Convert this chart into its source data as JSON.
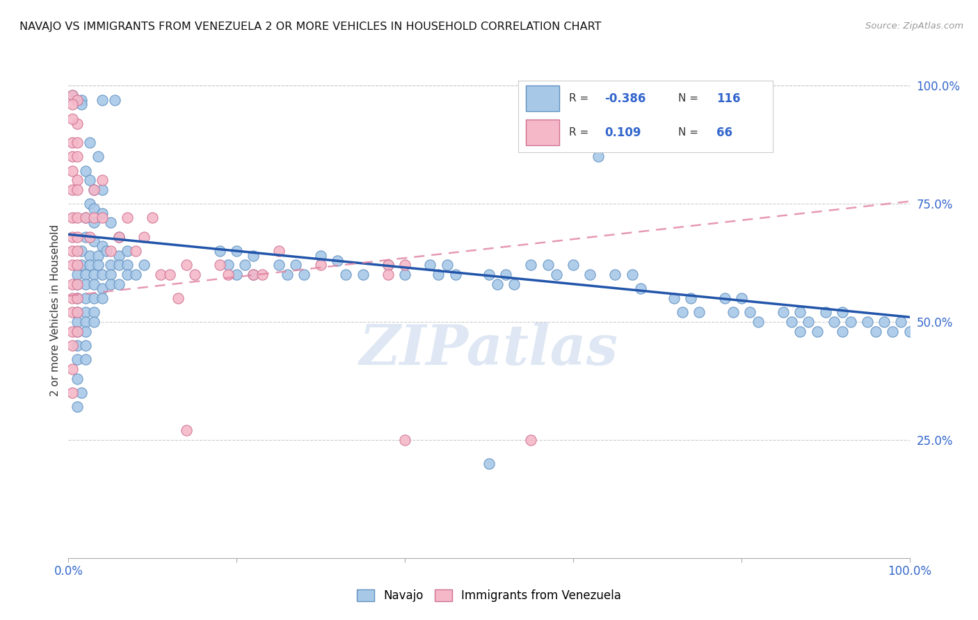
{
  "title": "NAVAJO VS IMMIGRANTS FROM VENEZUELA 2 OR MORE VEHICLES IN HOUSEHOLD CORRELATION CHART",
  "source": "Source: ZipAtlas.com",
  "ylabel": "2 or more Vehicles in Household",
  "xlim": [
    0,
    1
  ],
  "ylim": [
    0,
    1.05
  ],
  "xtick_positions": [
    0.0,
    0.2,
    0.4,
    0.6,
    0.8,
    1.0
  ],
  "xtick_labels": [
    "0.0%",
    "",
    "",
    "",
    "",
    "100.0%"
  ],
  "ytick_positions": [
    0.25,
    0.5,
    0.75,
    1.0
  ],
  "ytick_labels": [
    "25.0%",
    "50.0%",
    "75.0%",
    "100.0%"
  ],
  "navajo_color": "#a8c8e8",
  "navajo_edge_color": "#6090c0",
  "navajo_line_color": "#2255aa",
  "venezuela_color": "#f4b8c8",
  "venezuela_edge_color": "#d07090",
  "venezuela_line_color": "#e080a0",
  "background_color": "#ffffff",
  "grid_color": "#cccccc",
  "watermark_text": "ZIPatlas",
  "navajo_line_intercept": 0.685,
  "navajo_line_slope": -0.175,
  "venezuela_line_intercept": 0.555,
  "venezuela_line_slope": 0.2,
  "navajo_points": [
    [
      0.005,
      0.98
    ],
    [
      0.015,
      0.97
    ],
    [
      0.015,
      0.96
    ],
    [
      0.04,
      0.97
    ],
    [
      0.055,
      0.97
    ],
    [
      0.025,
      0.88
    ],
    [
      0.035,
      0.85
    ],
    [
      0.02,
      0.82
    ],
    [
      0.025,
      0.8
    ],
    [
      0.03,
      0.78
    ],
    [
      0.04,
      0.78
    ],
    [
      0.025,
      0.75
    ],
    [
      0.03,
      0.74
    ],
    [
      0.04,
      0.73
    ],
    [
      0.02,
      0.72
    ],
    [
      0.03,
      0.71
    ],
    [
      0.05,
      0.71
    ],
    [
      0.02,
      0.68
    ],
    [
      0.03,
      0.67
    ],
    [
      0.04,
      0.66
    ],
    [
      0.06,
      0.68
    ],
    [
      0.015,
      0.65
    ],
    [
      0.025,
      0.64
    ],
    [
      0.035,
      0.64
    ],
    [
      0.045,
      0.65
    ],
    [
      0.06,
      0.64
    ],
    [
      0.07,
      0.65
    ],
    [
      0.015,
      0.62
    ],
    [
      0.025,
      0.62
    ],
    [
      0.035,
      0.62
    ],
    [
      0.05,
      0.62
    ],
    [
      0.06,
      0.62
    ],
    [
      0.07,
      0.62
    ],
    [
      0.09,
      0.62
    ],
    [
      0.01,
      0.6
    ],
    [
      0.02,
      0.6
    ],
    [
      0.03,
      0.6
    ],
    [
      0.04,
      0.6
    ],
    [
      0.05,
      0.6
    ],
    [
      0.07,
      0.6
    ],
    [
      0.08,
      0.6
    ],
    [
      0.01,
      0.58
    ],
    [
      0.02,
      0.58
    ],
    [
      0.03,
      0.58
    ],
    [
      0.04,
      0.57
    ],
    [
      0.05,
      0.58
    ],
    [
      0.06,
      0.58
    ],
    [
      0.01,
      0.55
    ],
    [
      0.02,
      0.55
    ],
    [
      0.03,
      0.55
    ],
    [
      0.04,
      0.55
    ],
    [
      0.01,
      0.52
    ],
    [
      0.02,
      0.52
    ],
    [
      0.03,
      0.52
    ],
    [
      0.01,
      0.5
    ],
    [
      0.02,
      0.5
    ],
    [
      0.03,
      0.5
    ],
    [
      0.01,
      0.48
    ],
    [
      0.02,
      0.48
    ],
    [
      0.01,
      0.45
    ],
    [
      0.02,
      0.45
    ],
    [
      0.01,
      0.42
    ],
    [
      0.02,
      0.42
    ],
    [
      0.01,
      0.38
    ],
    [
      0.015,
      0.35
    ],
    [
      0.01,
      0.32
    ],
    [
      0.18,
      0.65
    ],
    [
      0.2,
      0.65
    ],
    [
      0.22,
      0.64
    ],
    [
      0.19,
      0.62
    ],
    [
      0.21,
      0.62
    ],
    [
      0.2,
      0.6
    ],
    [
      0.22,
      0.6
    ],
    [
      0.25,
      0.62
    ],
    [
      0.27,
      0.62
    ],
    [
      0.26,
      0.6
    ],
    [
      0.28,
      0.6
    ],
    [
      0.3,
      0.64
    ],
    [
      0.32,
      0.63
    ],
    [
      0.33,
      0.6
    ],
    [
      0.35,
      0.6
    ],
    [
      0.38,
      0.62
    ],
    [
      0.4,
      0.6
    ],
    [
      0.43,
      0.62
    ],
    [
      0.45,
      0.62
    ],
    [
      0.44,
      0.6
    ],
    [
      0.46,
      0.6
    ],
    [
      0.5,
      0.6
    ],
    [
      0.52,
      0.6
    ],
    [
      0.51,
      0.58
    ],
    [
      0.53,
      0.58
    ],
    [
      0.55,
      0.62
    ],
    [
      0.57,
      0.62
    ],
    [
      0.58,
      0.6
    ],
    [
      0.6,
      0.62
    ],
    [
      0.62,
      0.6
    ],
    [
      0.65,
      0.6
    ],
    [
      0.67,
      0.6
    ],
    [
      0.68,
      0.57
    ],
    [
      0.72,
      0.55
    ],
    [
      0.74,
      0.55
    ],
    [
      0.73,
      0.52
    ],
    [
      0.75,
      0.52
    ],
    [
      0.78,
      0.55
    ],
    [
      0.8,
      0.55
    ],
    [
      0.79,
      0.52
    ],
    [
      0.81,
      0.52
    ],
    [
      0.82,
      0.5
    ],
    [
      0.85,
      0.52
    ],
    [
      0.87,
      0.52
    ],
    [
      0.86,
      0.5
    ],
    [
      0.88,
      0.5
    ],
    [
      0.87,
      0.48
    ],
    [
      0.89,
      0.48
    ],
    [
      0.9,
      0.52
    ],
    [
      0.92,
      0.52
    ],
    [
      0.91,
      0.5
    ],
    [
      0.93,
      0.5
    ],
    [
      0.92,
      0.48
    ],
    [
      0.95,
      0.5
    ],
    [
      0.97,
      0.5
    ],
    [
      0.99,
      0.5
    ],
    [
      0.96,
      0.48
    ],
    [
      0.98,
      0.48
    ],
    [
      1.0,
      0.48
    ],
    [
      0.63,
      0.85
    ],
    [
      0.5,
      0.2
    ]
  ],
  "venezuela_points": [
    [
      0.005,
      0.98
    ],
    [
      0.01,
      0.97
    ],
    [
      0.005,
      0.96
    ],
    [
      0.01,
      0.92
    ],
    [
      0.005,
      0.93
    ],
    [
      0.005,
      0.88
    ],
    [
      0.01,
      0.88
    ],
    [
      0.005,
      0.85
    ],
    [
      0.01,
      0.85
    ],
    [
      0.005,
      0.82
    ],
    [
      0.01,
      0.8
    ],
    [
      0.005,
      0.78
    ],
    [
      0.01,
      0.78
    ],
    [
      0.005,
      0.72
    ],
    [
      0.01,
      0.72
    ],
    [
      0.005,
      0.68
    ],
    [
      0.01,
      0.68
    ],
    [
      0.005,
      0.65
    ],
    [
      0.01,
      0.65
    ],
    [
      0.005,
      0.62
    ],
    [
      0.01,
      0.62
    ],
    [
      0.005,
      0.58
    ],
    [
      0.01,
      0.58
    ],
    [
      0.005,
      0.55
    ],
    [
      0.01,
      0.55
    ],
    [
      0.005,
      0.52
    ],
    [
      0.01,
      0.52
    ],
    [
      0.005,
      0.48
    ],
    [
      0.01,
      0.48
    ],
    [
      0.005,
      0.45
    ],
    [
      0.005,
      0.4
    ],
    [
      0.005,
      0.35
    ],
    [
      0.02,
      0.72
    ],
    [
      0.025,
      0.68
    ],
    [
      0.03,
      0.78
    ],
    [
      0.03,
      0.72
    ],
    [
      0.04,
      0.8
    ],
    [
      0.04,
      0.72
    ],
    [
      0.05,
      0.65
    ],
    [
      0.06,
      0.68
    ],
    [
      0.07,
      0.72
    ],
    [
      0.08,
      0.65
    ],
    [
      0.09,
      0.68
    ],
    [
      0.1,
      0.72
    ],
    [
      0.11,
      0.6
    ],
    [
      0.12,
      0.6
    ],
    [
      0.14,
      0.62
    ],
    [
      0.15,
      0.6
    ],
    [
      0.13,
      0.55
    ],
    [
      0.18,
      0.62
    ],
    [
      0.19,
      0.6
    ],
    [
      0.22,
      0.6
    ],
    [
      0.23,
      0.6
    ],
    [
      0.25,
      0.65
    ],
    [
      0.3,
      0.62
    ],
    [
      0.38,
      0.62
    ],
    [
      0.4,
      0.62
    ],
    [
      0.38,
      0.6
    ],
    [
      0.14,
      0.27
    ],
    [
      0.4,
      0.25
    ],
    [
      0.55,
      0.25
    ]
  ]
}
